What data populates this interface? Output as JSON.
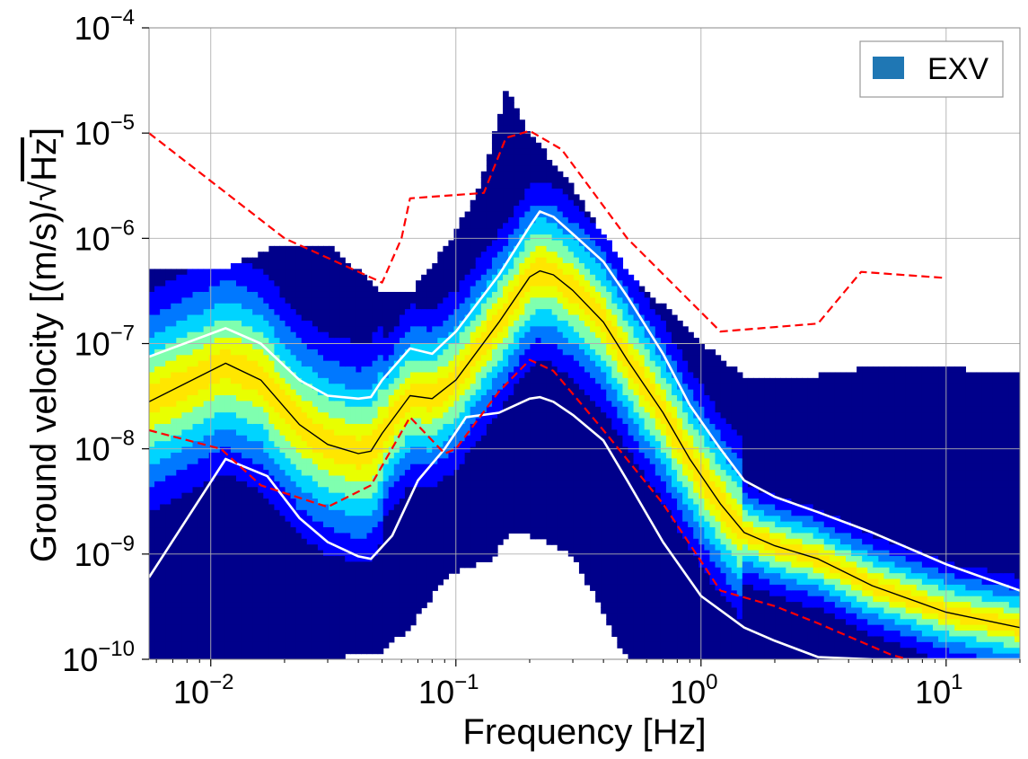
{
  "chart_data": {
    "type": "heatmap",
    "title": "",
    "xlabel": "Frequency [Hz]",
    "ylabel": "Ground velocity [(m/s)/√Hz]",
    "ylabel_parts": {
      "main": "Ground velocity [(m/s)/",
      "radical": "√",
      "radicand": "Hz",
      "close": "]"
    },
    "x_scale": "log",
    "y_scale": "log",
    "xlim": [
      0.0056,
      20
    ],
    "ylim": [
      1e-10,
      0.0001
    ],
    "grid": true,
    "x_ticks": [
      {
        "value": 0.01,
        "base": "10",
        "exp": "−2"
      },
      {
        "value": 0.1,
        "base": "10",
        "exp": "−1"
      },
      {
        "value": 1,
        "base": "10",
        "exp": "0"
      },
      {
        "value": 10,
        "base": "10",
        "exp": "1"
      }
    ],
    "y_ticks": [
      {
        "value": 1e-10,
        "base": "10",
        "exp": "−10"
      },
      {
        "value": 1e-09,
        "base": "10",
        "exp": "−9"
      },
      {
        "value": 1e-08,
        "base": "10",
        "exp": "−8"
      },
      {
        "value": 1e-07,
        "base": "10",
        "exp": "−7"
      },
      {
        "value": 1e-06,
        "base": "10",
        "exp": "−6"
      },
      {
        "value": 1e-05,
        "base": "10",
        "exp": "−5"
      },
      {
        "value": 0.0001,
        "base": "10",
        "exp": "−4"
      }
    ],
    "legend": {
      "placement": "top-right",
      "entries": [
        {
          "label": "EXV",
          "color": "#1f77b4"
        }
      ]
    },
    "colormap": [
      "#00008b",
      "#0000ff",
      "#0078ff",
      "#00d4ff",
      "#7fffaf",
      "#e8ff00",
      "#ffe600"
    ],
    "heatmap_envelope": {
      "x": [
        0.0056,
        0.011,
        0.0115,
        0.02,
        0.03,
        0.05,
        0.065,
        0.09,
        0.12,
        0.14,
        0.16,
        0.2,
        0.3,
        0.5,
        1.0,
        1.5,
        2,
        3,
        5,
        10,
        20
      ],
      "upper": [
        5.2e-07,
        5.2e-07,
        5.3e-07,
        9e-07,
        9e-07,
        3e-07,
        3e-07,
        8e-07,
        2.5e-06,
        8e-06,
        2.6e-05,
        1e-05,
        3e-06,
        5e-07,
        1e-07,
        5e-08,
        5e-08,
        5e-08,
        6e-08,
        6e-08,
        5e-08
      ],
      "lower": [
        1e-10,
        1e-10,
        1e-10,
        1e-10,
        1e-10,
        1.2e-10,
        2e-10,
        6e-10,
        8e-10,
        8e-10,
        1.5e-09,
        1.5e-09,
        1e-09,
        1e-10,
        1e-10,
        1e-10,
        1e-10,
        1e-10,
        1e-10,
        1e-10,
        1e-10
      ]
    },
    "series": [
      {
        "style": "solid",
        "color": "#ffffff",
        "width": 2.6,
        "x": [
          0.0056,
          0.0115,
          0.016,
          0.023,
          0.03,
          0.04,
          0.045,
          0.05,
          0.065,
          0.08,
          0.1,
          0.15,
          0.2,
          0.22,
          0.25,
          0.3,
          0.4,
          0.5,
          0.7,
          0.9,
          1.2,
          1.5,
          2,
          3,
          5,
          10,
          20
        ],
        "y": [
          7.5e-08,
          1.4e-07,
          1e-07,
          4.5e-08,
          3.2e-08,
          3e-08,
          3.1e-08,
          4.5e-08,
          9e-08,
          8e-08,
          1.3e-07,
          4.5e-07,
          1.3e-06,
          1.8e-06,
          1.6e-06,
          1.1e-06,
          6e-07,
          2.8e-07,
          8e-08,
          2.6e-08,
          1e-08,
          5e-09,
          3.5e-09,
          2.5e-09,
          1.6e-09,
          8e-10,
          4.5e-10
        ]
      },
      {
        "style": "solid",
        "color": "#000000",
        "width": 1.4,
        "x": [
          0.0056,
          0.0115,
          0.016,
          0.023,
          0.03,
          0.04,
          0.045,
          0.05,
          0.065,
          0.08,
          0.1,
          0.15,
          0.2,
          0.22,
          0.25,
          0.3,
          0.4,
          0.5,
          0.7,
          0.9,
          1.2,
          1.5,
          2,
          3,
          5,
          10,
          20
        ],
        "y": [
          2.8e-08,
          6.5e-08,
          4.5e-08,
          1.7e-08,
          1.1e-08,
          9e-09,
          9.5e-09,
          1.4e-08,
          3.2e-08,
          3e-08,
          4.5e-08,
          1.6e-07,
          4.3e-07,
          4.9e-07,
          4.5e-07,
          3.2e-07,
          1.6e-07,
          7e-08,
          2.2e-08,
          8e-09,
          3e-09,
          1.6e-09,
          1.2e-09,
          9e-10,
          5e-10,
          2.8e-10,
          2e-10
        ]
      },
      {
        "style": "solid",
        "color": "#ffffff",
        "width": 2.6,
        "x": [
          0.0056,
          0.0115,
          0.017,
          0.023,
          0.03,
          0.04,
          0.045,
          0.055,
          0.07,
          0.09,
          0.11,
          0.15,
          0.2,
          0.22,
          0.25,
          0.3,
          0.4,
          0.5,
          0.7,
          1.0,
          1.5,
          2,
          3,
          5,
          10,
          20
        ],
        "y": [
          6e-10,
          8e-09,
          5.5e-09,
          2.2e-09,
          1.3e-09,
          9.5e-10,
          9e-10,
          1.5e-09,
          5e-09,
          1e-08,
          2e-08,
          2.2e-08,
          3e-08,
          3.1e-08,
          2.8e-08,
          2.1e-08,
          1.2e-08,
          5e-09,
          1.3e-09,
          4e-10,
          2e-10,
          1.5e-10,
          1.05e-10,
          1e-10,
          1e-10,
          1e-10
        ]
      },
      {
        "style": "dashed",
        "color": "#ff0000",
        "width": 2.2,
        "x": [
          0.0056,
          0.02,
          0.05,
          0.06,
          0.065,
          0.13,
          0.16,
          0.2,
          0.27,
          0.5,
          1.2,
          3,
          4.5,
          10
        ],
        "y": [
          1e-05,
          1e-06,
          3.8e-07,
          1e-06,
          2.4e-06,
          2.7e-06,
          9e-06,
          1.05e-05,
          7e-06,
          1e-06,
          1.3e-07,
          1.55e-07,
          4.8e-07,
          4.2e-07
        ]
      },
      {
        "style": "dashed",
        "color": "#ff0000",
        "width": 2.2,
        "x": [
          0.0056,
          0.011,
          0.016,
          0.03,
          0.045,
          0.065,
          0.09,
          0.1,
          0.15,
          0.2,
          0.25,
          0.4,
          0.7,
          1.2,
          2,
          3,
          6,
          7
        ],
        "y": [
          1.5e-08,
          1e-08,
          4.5e-09,
          2.8e-09,
          4.5e-09,
          2e-08,
          9e-09,
          1e-08,
          3.5e-08,
          7e-08,
          5.5e-08,
          1.5e-08,
          3e-09,
          4.5e-10,
          3.2e-10,
          2.2e-10,
          1.1e-10,
          1e-10
        ]
      }
    ]
  }
}
